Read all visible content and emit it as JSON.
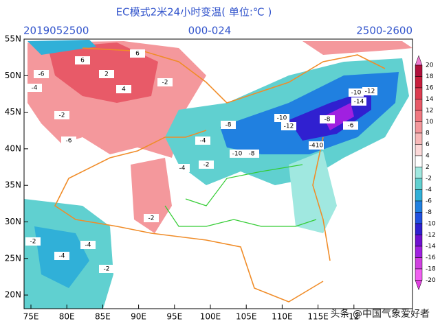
{
  "header": {
    "title": "EC模式2米24小时变温( 单位:℃ )",
    "date": "2019052500",
    "range": "000-024",
    "level": "2500-2600"
  },
  "lat_labels": [
    "55N",
    "50N",
    "45N",
    "40N",
    "35N",
    "30N",
    "25N",
    "20N"
  ],
  "lon_labels": [
    "75E",
    "80E",
    "85E",
    "90E",
    "95E",
    "100E",
    "105E",
    "110E",
    "115E",
    "12"
  ],
  "colorbar": {
    "labels": [
      "20",
      "18",
      "16",
      "14",
      "12",
      "10",
      "8",
      "6",
      "4",
      "2",
      "-2",
      "-4",
      "-6",
      "-8",
      "-10",
      "-12",
      "-14",
      "-16",
      "-18",
      "-20"
    ],
    "colors": [
      "#f07ad0",
      "#b0103c",
      "#c81e3c",
      "#dc3c50",
      "#e85a68",
      "#f07880",
      "#f4989c",
      "#f8b8b8",
      "#fcd8d8",
      "#ffffff",
      "#a0e8e0",
      "#60d0d0",
      "#30b0d8",
      "#2080e0",
      "#2050e0",
      "#3020d0",
      "#7010d0",
      "#a020e0",
      "#d040e0",
      "#f060f0",
      "#e040e0"
    ]
  },
  "map_labels": [
    "6",
    "6",
    "4",
    "2",
    "-2",
    "-6",
    "-4",
    "-2",
    "-6",
    "-8",
    "-10",
    "-12",
    "-14",
    "-8",
    "-10",
    "-12",
    "-6",
    "-8",
    "-410",
    "-10",
    "-4",
    "-2",
    "-4",
    "-2",
    "-4",
    "-2",
    "-4",
    "-2"
  ],
  "footer": {
    "watermark": "头条 @中国气象爱好者"
  }
}
